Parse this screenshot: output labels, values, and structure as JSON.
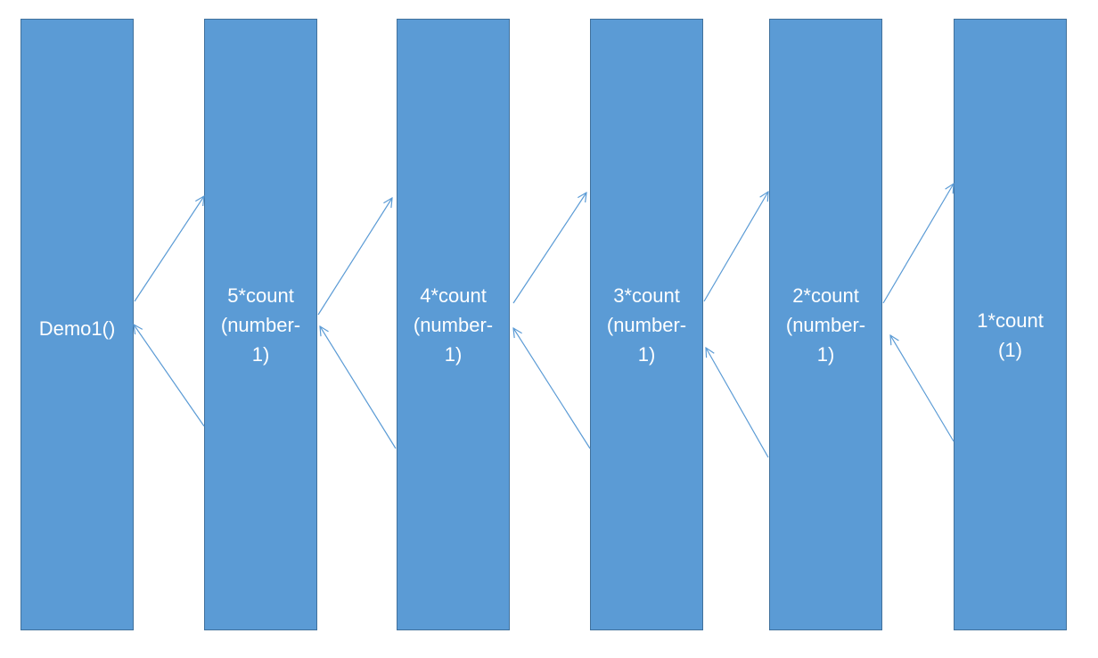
{
  "diagram": {
    "boxes": [
      {
        "id": "b0",
        "label": "Demo1()"
      },
      {
        "id": "b1",
        "label": "5*count\n(number-\n1)"
      },
      {
        "id": "b2",
        "label": "4*count\n(number-\n1)"
      },
      {
        "id": "b3",
        "label": "3*count\n(number-\n1)"
      },
      {
        "id": "b4",
        "label": "2*count\n(number-\n1)"
      },
      {
        "id": "b5",
        "label": "1*count\n(1)"
      }
    ],
    "arrow_color": "#5b9bd5",
    "box_color": "#5b9bd5",
    "box_border_color": "#41719c"
  }
}
